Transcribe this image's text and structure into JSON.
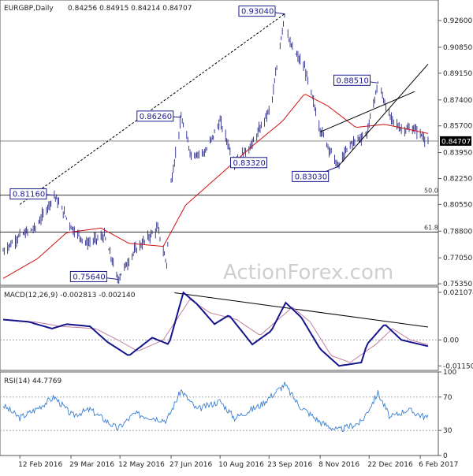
{
  "header": {
    "symbol": "EURGBP,Daily",
    "ohlc": "0.84256 0.84915 0.84214 0.84707"
  },
  "watermark": "ActionForex.com",
  "current_price": "0.84707",
  "colors": {
    "candle": "#2a2a8c",
    "ma": "#d01010",
    "macd": "#14148c",
    "signal": "#c080a0",
    "rsi": "#3a7fd0",
    "callout": "#1a1a8c",
    "price_tag_bg": "#000000",
    "price_tag_text": "#ffffff"
  },
  "x_axis": {
    "labels": [
      "12 Feb 2016",
      "29 Mar 2016",
      "12 May 2016",
      "27 Jun 2016",
      "10 Aug 2016",
      "23 Sep 2016",
      "8 Nov 2016",
      "22 Dec 2016",
      "6 Feb 2017"
    ]
  },
  "chart_data": [
    {
      "type": "candlestick",
      "panel": "price",
      "ylim": [
        0.7525,
        0.9395
      ],
      "yticks": [
        "0.92600",
        "0.90850",
        "0.89150",
        "0.87400",
        "0.85700",
        "0.83950",
        "0.82250",
        "0.80550",
        "0.78800",
        "0.77050",
        "0.75350"
      ],
      "key_levels": [
        {
          "label": "0.93040",
          "date": "2016-10-07",
          "value": 0.9304
        },
        {
          "label": "0.86260",
          "date": "2016-07-06",
          "value": 0.8626
        },
        {
          "label": "0.83320",
          "date": "2016-08-23",
          "value": 0.8332
        },
        {
          "label": "0.88510",
          "date": "2016-12-30",
          "value": 0.8851
        },
        {
          "label": "0.83030",
          "date": "2016-11-24",
          "value": 0.8303
        },
        {
          "label": "0.81160",
          "date": "2016-03-14",
          "value": 0.8116
        },
        {
          "label": "0.75640",
          "date": "2016-05-10",
          "value": 0.7564
        }
      ],
      "fib_levels": [
        {
          "label": "50.0",
          "value": 0.8116
        },
        {
          "label": "61.8",
          "value": 0.7874
        }
      ],
      "hline_current": 0.84707,
      "trendline": [
        {
          "date": "2016-02-12",
          "value": 0.8055
        },
        {
          "date": "2016-10-07",
          "value": 0.9304
        }
      ],
      "channel": [
        [
          {
            "date": "2016-11-24",
            "value": 0.8303
          },
          {
            "date": "2017-02-13",
            "value": 0.8975
          }
        ],
        [
          {
            "date": "2016-11-08",
            "value": 0.853
          },
          {
            "date": "2017-02-01",
            "value": 0.8795
          }
        ]
      ],
      "anchors": [
        {
          "date": "2016-01-28",
          "value": 0.775
        },
        {
          "date": "2016-02-12",
          "value": 0.785
        },
        {
          "date": "2016-02-26",
          "value": 0.79
        },
        {
          "date": "2016-03-14",
          "value": 0.8116
        },
        {
          "date": "2016-03-30",
          "value": 0.79
        },
        {
          "date": "2016-04-12",
          "value": 0.78
        },
        {
          "date": "2016-04-28",
          "value": 0.785
        },
        {
          "date": "2016-05-10",
          "value": 0.7564
        },
        {
          "date": "2016-05-25",
          "value": 0.775
        },
        {
          "date": "2016-06-15",
          "value": 0.79
        },
        {
          "date": "2016-06-23",
          "value": 0.7664
        },
        {
          "date": "2016-06-27",
          "value": 0.82
        },
        {
          "date": "2016-07-06",
          "value": 0.8626
        },
        {
          "date": "2016-07-15",
          "value": 0.838
        },
        {
          "date": "2016-07-28",
          "value": 0.84
        },
        {
          "date": "2016-08-10",
          "value": 0.86
        },
        {
          "date": "2016-08-23",
          "value": 0.8332
        },
        {
          "date": "2016-09-08",
          "value": 0.845
        },
        {
          "date": "2016-09-25",
          "value": 0.87
        },
        {
          "date": "2016-10-07",
          "value": 0.9304
        },
        {
          "date": "2016-10-12",
          "value": 0.91
        },
        {
          "date": "2016-10-25",
          "value": 0.895
        },
        {
          "date": "2016-11-08",
          "value": 0.855
        },
        {
          "date": "2016-11-24",
          "value": 0.8303
        },
        {
          "date": "2016-12-05",
          "value": 0.845
        },
        {
          "date": "2016-12-20",
          "value": 0.852
        },
        {
          "date": "2016-12-30",
          "value": 0.8851
        },
        {
          "date": "2017-01-10",
          "value": 0.862
        },
        {
          "date": "2017-01-20",
          "value": 0.855
        },
        {
          "date": "2017-02-01",
          "value": 0.855
        },
        {
          "date": "2017-02-13",
          "value": 0.84707
        }
      ],
      "ma_anchors": [
        {
          "date": "2016-01-28",
          "value": 0.757
        },
        {
          "date": "2016-02-28",
          "value": 0.77
        },
        {
          "date": "2016-03-25",
          "value": 0.787
        },
        {
          "date": "2016-04-25",
          "value": 0.79
        },
        {
          "date": "2016-05-20",
          "value": 0.78
        },
        {
          "date": "2016-06-20",
          "value": 0.778
        },
        {
          "date": "2016-07-10",
          "value": 0.805
        },
        {
          "date": "2016-08-10",
          "value": 0.825
        },
        {
          "date": "2016-09-10",
          "value": 0.845
        },
        {
          "date": "2016-10-05",
          "value": 0.86
        },
        {
          "date": "2016-10-25",
          "value": 0.878
        },
        {
          "date": "2016-11-15",
          "value": 0.87
        },
        {
          "date": "2016-12-10",
          "value": 0.856
        },
        {
          "date": "2017-01-05",
          "value": 0.858
        },
        {
          "date": "2017-02-13",
          "value": 0.852
        }
      ]
    },
    {
      "type": "line",
      "panel": "macd",
      "title": "MACD(12,26,9) -0.002813 -0.002140",
      "ylim": [
        -0.0135,
        0.0235
      ],
      "yticks": [
        "0.021074",
        "0.00",
        "-0.011507"
      ],
      "trendline": [
        {
          "date": "2016-06-30",
          "value": 0.0209
        },
        {
          "date": "2017-02-13",
          "value": 0.0057
        }
      ],
      "series": [
        {
          "name": "MACD",
          "anchors": [
            {
              "date": "2016-01-28",
              "value": 0.009
            },
            {
              "date": "2016-02-20",
              "value": 0.008
            },
            {
              "date": "2016-03-12",
              "value": 0.005
            },
            {
              "date": "2016-03-25",
              "value": 0.007
            },
            {
              "date": "2016-04-15",
              "value": 0.006
            },
            {
              "date": "2016-05-01",
              "value": -0.001
            },
            {
              "date": "2016-05-20",
              "value": -0.007
            },
            {
              "date": "2016-06-10",
              "value": 0.001
            },
            {
              "date": "2016-06-25",
              "value": -0.002
            },
            {
              "date": "2016-07-08",
              "value": 0.021
            },
            {
              "date": "2016-07-20",
              "value": 0.016
            },
            {
              "date": "2016-08-05",
              "value": 0.007
            },
            {
              "date": "2016-08-18",
              "value": 0.011
            },
            {
              "date": "2016-09-08",
              "value": -0.002
            },
            {
              "date": "2016-09-25",
              "value": 0.004
            },
            {
              "date": "2016-10-08",
              "value": 0.0165
            },
            {
              "date": "2016-10-22",
              "value": 0.01
            },
            {
              "date": "2016-11-08",
              "value": -0.004
            },
            {
              "date": "2016-11-25",
              "value": -0.0115
            },
            {
              "date": "2016-12-15",
              "value": -0.01
            },
            {
              "date": "2016-12-20",
              "value": -0.002
            },
            {
              "date": "2017-01-05",
              "value": 0.007
            },
            {
              "date": "2017-01-20",
              "value": 0.0
            },
            {
              "date": "2017-02-13",
              "value": -0.0028
            }
          ]
        },
        {
          "name": "Signal",
          "anchors": [
            {
              "date": "2016-01-28",
              "value": 0.009
            },
            {
              "date": "2016-02-25",
              "value": 0.008
            },
            {
              "date": "2016-03-20",
              "value": 0.006
            },
            {
              "date": "2016-04-20",
              "value": 0.005
            },
            {
              "date": "2016-05-10",
              "value": 0.0
            },
            {
              "date": "2016-05-28",
              "value": -0.005
            },
            {
              "date": "2016-06-20",
              "value": 0.0
            },
            {
              "date": "2016-07-14",
              "value": 0.018
            },
            {
              "date": "2016-08-01",
              "value": 0.012
            },
            {
              "date": "2016-08-25",
              "value": 0.009
            },
            {
              "date": "2016-09-15",
              "value": 0.002
            },
            {
              "date": "2016-10-14",
              "value": 0.0145
            },
            {
              "date": "2016-10-30",
              "value": 0.008
            },
            {
              "date": "2016-11-18",
              "value": -0.007
            },
            {
              "date": "2016-12-05",
              "value": -0.01
            },
            {
              "date": "2016-12-28",
              "value": -0.002
            },
            {
              "date": "2017-01-12",
              "value": 0.005
            },
            {
              "date": "2017-01-28",
              "value": 0.0
            },
            {
              "date": "2017-02-13",
              "value": -0.0021
            }
          ]
        }
      ]
    },
    {
      "type": "line",
      "panel": "rsi",
      "title": "RSI(14) 44.7769",
      "ylim": [
        0,
        100
      ],
      "yticks": [
        "100",
        "70",
        "30",
        "0"
      ],
      "levels": [
        70,
        30
      ],
      "series": [
        {
          "name": "RSI",
          "anchors": [
            {
              "date": "2016-01-28",
              "value": 60
            },
            {
              "date": "2016-02-12",
              "value": 45
            },
            {
              "date": "2016-02-26",
              "value": 55
            },
            {
              "date": "2016-03-14",
              "value": 70
            },
            {
              "date": "2016-03-30",
              "value": 48
            },
            {
              "date": "2016-04-15",
              "value": 55
            },
            {
              "date": "2016-05-10",
              "value": 32
            },
            {
              "date": "2016-05-25",
              "value": 50
            },
            {
              "date": "2016-06-23",
              "value": 42
            },
            {
              "date": "2016-07-06",
              "value": 78
            },
            {
              "date": "2016-07-20",
              "value": 55
            },
            {
              "date": "2016-08-10",
              "value": 65
            },
            {
              "date": "2016-08-23",
              "value": 45
            },
            {
              "date": "2016-09-15",
              "value": 60
            },
            {
              "date": "2016-10-07",
              "value": 85
            },
            {
              "date": "2016-10-20",
              "value": 60
            },
            {
              "date": "2016-11-08",
              "value": 40
            },
            {
              "date": "2016-11-24",
              "value": 30
            },
            {
              "date": "2016-12-15",
              "value": 40
            },
            {
              "date": "2016-12-30",
              "value": 75
            },
            {
              "date": "2017-01-10",
              "value": 45
            },
            {
              "date": "2017-01-25",
              "value": 55
            },
            {
              "date": "2017-02-13",
              "value": 44.78
            }
          ]
        }
      ]
    }
  ]
}
